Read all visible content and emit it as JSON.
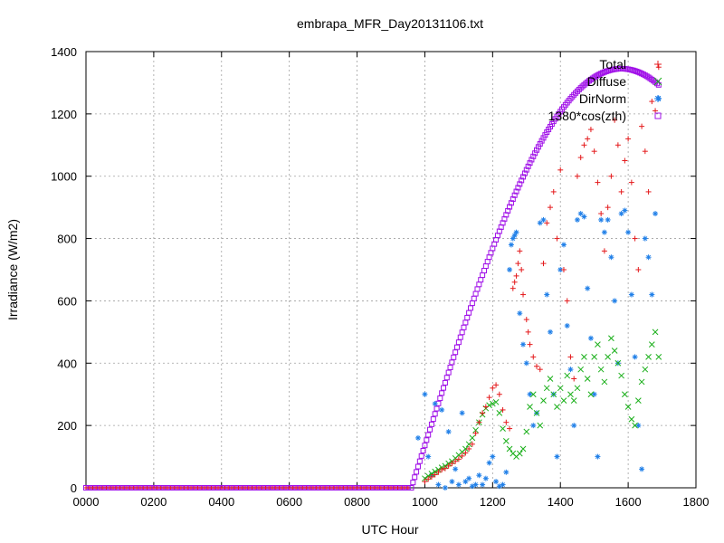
{
  "chart_data": {
    "type": "scatter",
    "title": "embrapa_MFR_Day20131106.txt",
    "xlabel": "UTC Hour",
    "ylabel": "Irradiance (W/m2)",
    "xlim": [
      0,
      1800
    ],
    "ylim": [
      0,
      1400
    ],
    "xticks": [
      "0000",
      "0200",
      "0400",
      "0600",
      "0800",
      "1000",
      "1200",
      "1400",
      "1600",
      "1800"
    ],
    "xtick_values": [
      0,
      200,
      400,
      600,
      800,
      1000,
      1200,
      1400,
      1600,
      1800
    ],
    "yticks": [
      "0",
      "200",
      "400",
      "600",
      "800",
      "1000",
      "1200",
      "1400"
    ],
    "ytick_values": [
      0,
      200,
      400,
      600,
      800,
      1000,
      1200,
      1400
    ],
    "grid": true,
    "legend_position": "top-right",
    "series": [
      {
        "name": "Total",
        "color": "#e41a1c",
        "marker": "plus",
        "points": [
          [
            1000,
            20
          ],
          [
            1010,
            28
          ],
          [
            1020,
            35
          ],
          [
            1030,
            42
          ],
          [
            1040,
            50
          ],
          [
            1050,
            58
          ],
          [
            1060,
            62
          ],
          [
            1070,
            70
          ],
          [
            1080,
            78
          ],
          [
            1090,
            85
          ],
          [
            1100,
            92
          ],
          [
            1110,
            102
          ],
          [
            1120,
            112
          ],
          [
            1130,
            125
          ],
          [
            1140,
            140
          ],
          [
            1150,
            175
          ],
          [
            1160,
            210
          ],
          [
            1170,
            240
          ],
          [
            1180,
            260
          ],
          [
            1190,
            290
          ],
          [
            1200,
            320
          ],
          [
            1210,
            330
          ],
          [
            1220,
            300
          ],
          [
            1230,
            250
          ],
          [
            1240,
            210
          ],
          [
            1250,
            190
          ],
          [
            1260,
            640
          ],
          [
            1265,
            660
          ],
          [
            1270,
            680
          ],
          [
            1275,
            720
          ],
          [
            1280,
            760
          ],
          [
            1285,
            700
          ],
          [
            1290,
            620
          ],
          [
            1300,
            540
          ],
          [
            1305,
            500
          ],
          [
            1310,
            460
          ],
          [
            1320,
            420
          ],
          [
            1330,
            390
          ],
          [
            1340,
            380
          ],
          [
            1350,
            720
          ],
          [
            1360,
            850
          ],
          [
            1370,
            900
          ],
          [
            1380,
            950
          ],
          [
            1390,
            800
          ],
          [
            1400,
            1020
          ],
          [
            1410,
            700
          ],
          [
            1420,
            600
          ],
          [
            1430,
            420
          ],
          [
            1440,
            350
          ],
          [
            1450,
            1000
          ],
          [
            1460,
            1060
          ],
          [
            1470,
            1100
          ],
          [
            1480,
            1120
          ],
          [
            1490,
            1150
          ],
          [
            1500,
            1080
          ],
          [
            1510,
            980
          ],
          [
            1520,
            880
          ],
          [
            1530,
            760
          ],
          [
            1540,
            900
          ],
          [
            1550,
            1000
          ],
          [
            1560,
            1180
          ],
          [
            1570,
            1100
          ],
          [
            1580,
            950
          ],
          [
            1590,
            1050
          ],
          [
            1600,
            1120
          ],
          [
            1610,
            980
          ],
          [
            1620,
            800
          ],
          [
            1630,
            700
          ],
          [
            1640,
            1160
          ],
          [
            1650,
            1080
          ],
          [
            1660,
            950
          ],
          [
            1670,
            1240
          ],
          [
            1680,
            1210
          ],
          [
            1690,
            1350
          ]
        ]
      },
      {
        "name": "Diffuse",
        "color": "#1aaf1a",
        "marker": "cross",
        "points": [
          [
            1000,
            30
          ],
          [
            1010,
            38
          ],
          [
            1020,
            45
          ],
          [
            1030,
            52
          ],
          [
            1040,
            58
          ],
          [
            1050,
            65
          ],
          [
            1060,
            70
          ],
          [
            1070,
            78
          ],
          [
            1080,
            85
          ],
          [
            1090,
            95
          ],
          [
            1100,
            105
          ],
          [
            1110,
            115
          ],
          [
            1120,
            125
          ],
          [
            1130,
            140
          ],
          [
            1140,
            160
          ],
          [
            1150,
            185
          ],
          [
            1160,
            210
          ],
          [
            1170,
            235
          ],
          [
            1180,
            255
          ],
          [
            1190,
            265
          ],
          [
            1200,
            270
          ],
          [
            1210,
            275
          ],
          [
            1220,
            240
          ],
          [
            1230,
            190
          ],
          [
            1240,
            150
          ],
          [
            1250,
            125
          ],
          [
            1260,
            110
          ],
          [
            1270,
            100
          ],
          [
            1280,
            110
          ],
          [
            1290,
            125
          ],
          [
            1300,
            180
          ],
          [
            1310,
            260
          ],
          [
            1320,
            300
          ],
          [
            1330,
            240
          ],
          [
            1340,
            200
          ],
          [
            1350,
            280
          ],
          [
            1360,
            320
          ],
          [
            1370,
            350
          ],
          [
            1380,
            300
          ],
          [
            1390,
            260
          ],
          [
            1400,
            320
          ],
          [
            1410,
            280
          ],
          [
            1420,
            360
          ],
          [
            1430,
            300
          ],
          [
            1440,
            280
          ],
          [
            1450,
            320
          ],
          [
            1460,
            380
          ],
          [
            1470,
            420
          ],
          [
            1480,
            350
          ],
          [
            1490,
            300
          ],
          [
            1500,
            420
          ],
          [
            1510,
            460
          ],
          [
            1520,
            380
          ],
          [
            1530,
            340
          ],
          [
            1540,
            420
          ],
          [
            1550,
            480
          ],
          [
            1560,
            440
          ],
          [
            1570,
            400
          ],
          [
            1580,
            360
          ],
          [
            1590,
            300
          ],
          [
            1600,
            260
          ],
          [
            1610,
            220
          ],
          [
            1620,
            200
          ],
          [
            1630,
            280
          ],
          [
            1640,
            340
          ],
          [
            1650,
            380
          ],
          [
            1660,
            420
          ],
          [
            1670,
            460
          ],
          [
            1680,
            500
          ],
          [
            1690,
            420
          ]
        ]
      },
      {
        "name": "DirNorm",
        "color": "#1f7fe8",
        "marker": "star",
        "points": [
          [
            980,
            160
          ],
          [
            1000,
            300
          ],
          [
            1010,
            100
          ],
          [
            1020,
            40
          ],
          [
            1030,
            270
          ],
          [
            1040,
            10
          ],
          [
            1050,
            250
          ],
          [
            1060,
            0
          ],
          [
            1070,
            180
          ],
          [
            1080,
            20
          ],
          [
            1090,
            60
          ],
          [
            1100,
            10
          ],
          [
            1110,
            240
          ],
          [
            1120,
            20
          ],
          [
            1130,
            30
          ],
          [
            1140,
            5
          ],
          [
            1150,
            10
          ],
          [
            1160,
            40
          ],
          [
            1170,
            10
          ],
          [
            1180,
            30
          ],
          [
            1190,
            80
          ],
          [
            1200,
            100
          ],
          [
            1210,
            20
          ],
          [
            1220,
            5
          ],
          [
            1230,
            10
          ],
          [
            1240,
            50
          ],
          [
            1250,
            700
          ],
          [
            1255,
            780
          ],
          [
            1260,
            800
          ],
          [
            1265,
            810
          ],
          [
            1270,
            820
          ],
          [
            1280,
            560
          ],
          [
            1290,
            460
          ],
          [
            1300,
            400
          ],
          [
            1310,
            300
          ],
          [
            1320,
            200
          ],
          [
            1330,
            240
          ],
          [
            1340,
            850
          ],
          [
            1350,
            860
          ],
          [
            1360,
            620
          ],
          [
            1370,
            500
          ],
          [
            1380,
            300
          ],
          [
            1390,
            100
          ],
          [
            1400,
            700
          ],
          [
            1410,
            780
          ],
          [
            1420,
            520
          ],
          [
            1430,
            380
          ],
          [
            1440,
            200
          ],
          [
            1450,
            860
          ],
          [
            1460,
            880
          ],
          [
            1470,
            870
          ],
          [
            1480,
            640
          ],
          [
            1490,
            480
          ],
          [
            1500,
            300
          ],
          [
            1510,
            100
          ],
          [
            1520,
            860
          ],
          [
            1530,
            820
          ],
          [
            1540,
            860
          ],
          [
            1550,
            740
          ],
          [
            1560,
            600
          ],
          [
            1570,
            400
          ],
          [
            1580,
            880
          ],
          [
            1590,
            890
          ],
          [
            1600,
            820
          ],
          [
            1610,
            620
          ],
          [
            1620,
            420
          ],
          [
            1630,
            200
          ],
          [
            1640,
            60
          ],
          [
            1650,
            800
          ],
          [
            1660,
            740
          ],
          [
            1670,
            620
          ],
          [
            1680,
            880
          ],
          [
            1690,
            1250
          ]
        ]
      },
      {
        "name": "1380*cos(zth)",
        "color": "#a010e8",
        "marker": "square",
        "x_start": 960,
        "x_end": 1690,
        "x_step": 5,
        "peak": 1345,
        "peak_x": 1580,
        "baseline": 0
      }
    ]
  }
}
